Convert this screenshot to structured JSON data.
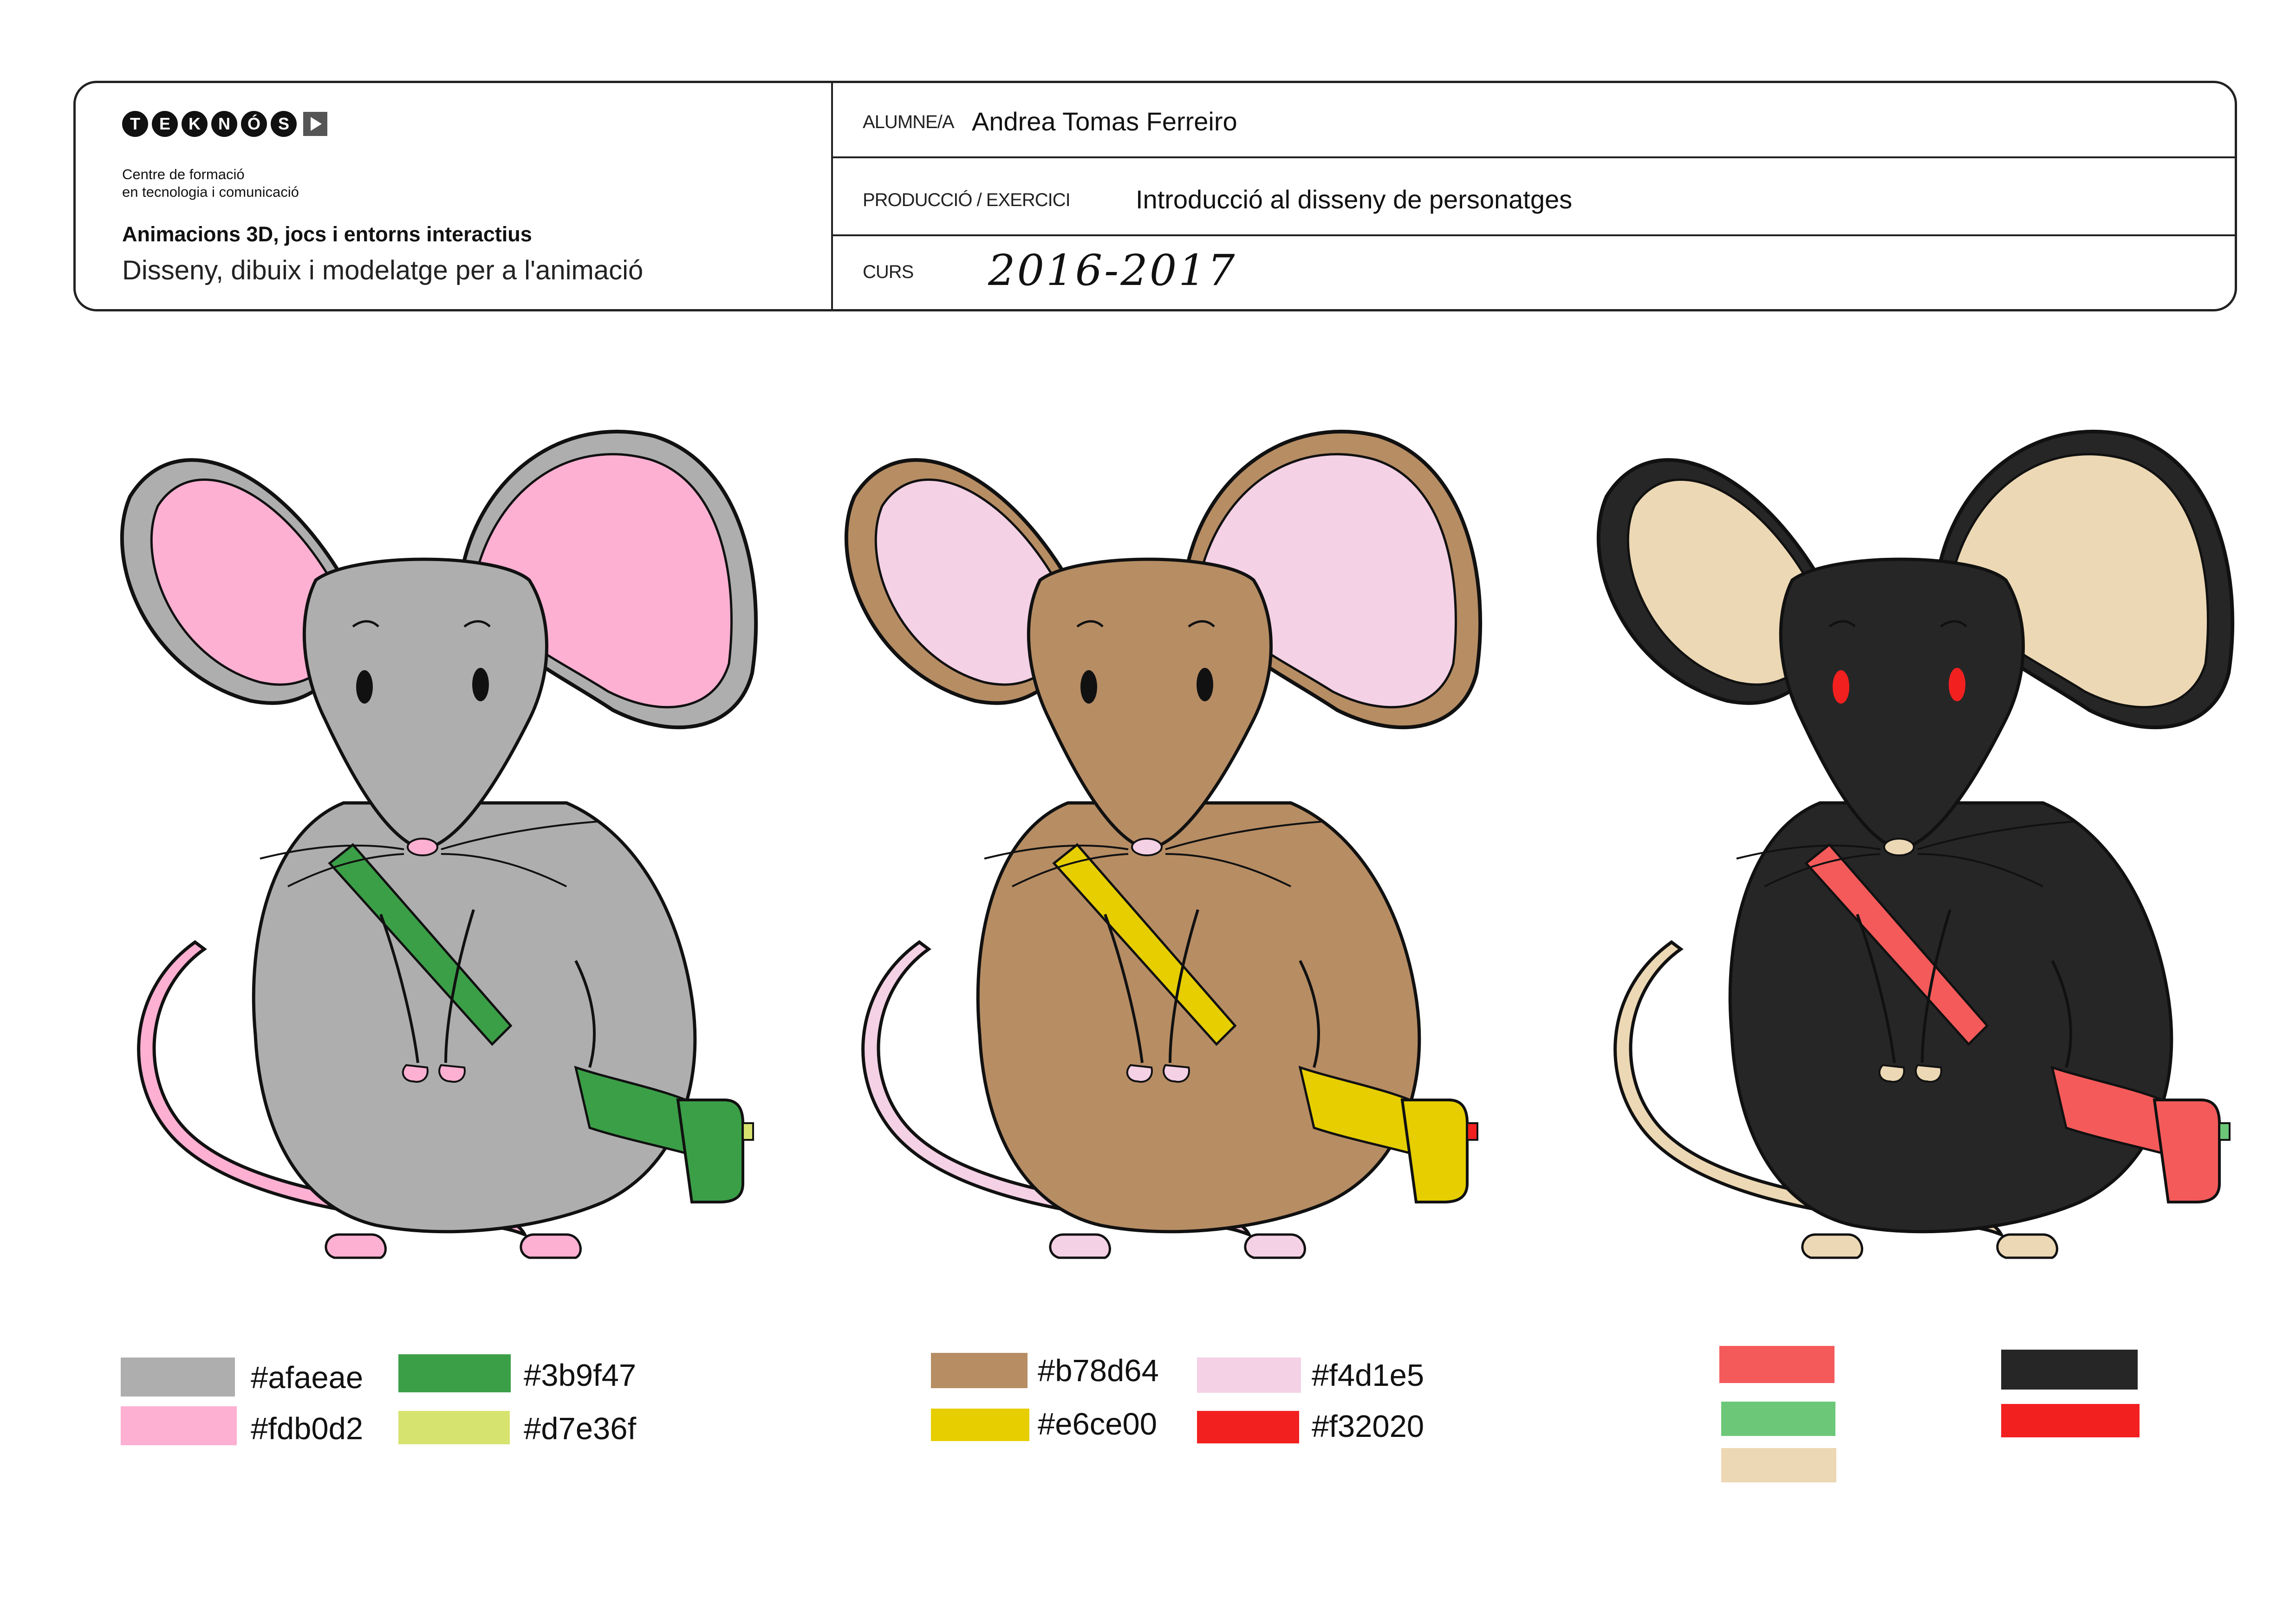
{
  "header": {
    "logo_letters": [
      "T",
      "E",
      "K",
      "N",
      "Ó",
      "S"
    ],
    "centre_line1": "Centre de formació",
    "centre_line2": "en tecnologia i comunicació",
    "course": "Animacions 3D, jocs i entorns interactius",
    "subject": "Disseny, dibuix i modelatge per a l'animació",
    "student_label": "ALUMNE/A",
    "student_name": "Andrea Tomas Ferreiro",
    "exercise_label": "PRODUCCIÓ / EXERCICI",
    "exercise_name": "Introducció al disseny de personatges",
    "year_label": "CURS",
    "year_value": "2016-2017"
  },
  "characters": [
    {
      "body": "#afaeae",
      "ear": "#fdb0d2",
      "tail": "#fdb0d2",
      "strap": "#3b9f47",
      "clasp": "#d7e36f",
      "eye": "#111111"
    },
    {
      "body": "#b78d64",
      "ear": "#f4d1e5",
      "tail": "#f4d1e5",
      "strap": "#e6ce00",
      "clasp": "#f32020",
      "eye": "#111111"
    },
    {
      "body": "#262626",
      "ear": "#ecd8b4",
      "tail": "#ecd8b4",
      "strap": "#f55a5a",
      "clasp": "#6cc878",
      "eye": "#f32020"
    }
  ],
  "palettes": [
    {
      "swatches": [
        {
          "color": "#afaeae",
          "label": "#afaeae"
        },
        {
          "color": "#fdb0d2",
          "label": "#fdb0d2"
        },
        {
          "color": "#3b9f47",
          "label": "#3b9f47"
        },
        {
          "color": "#d7e36f",
          "label": "#d7e36f"
        }
      ]
    },
    {
      "swatches": [
        {
          "color": "#b78d64",
          "label": "#b78d64"
        },
        {
          "color": "#e6ce00",
          "label": "#e6ce00"
        },
        {
          "color": "#f4d1e5",
          "label": "#f4d1e5"
        },
        {
          "color": "#f32020",
          "label": "#f32020"
        }
      ]
    },
    {
      "swatches": [
        {
          "color": "#f55a5a"
        },
        {
          "color": "#6cc878"
        },
        {
          "color": "#ecd8b4"
        },
        {
          "color": "#262626"
        },
        {
          "color": "#f32020"
        }
      ]
    }
  ]
}
